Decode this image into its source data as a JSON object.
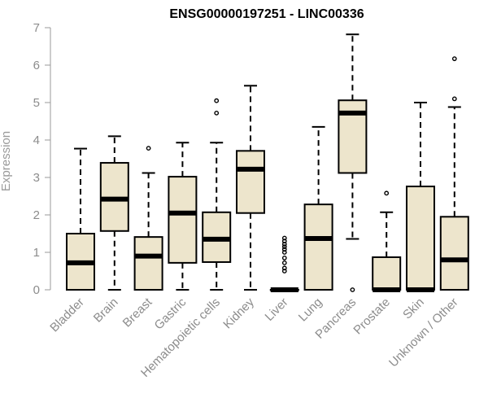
{
  "chart_data": {
    "type": "boxplot",
    "title": "ENSG00000197251 - LINC00336",
    "ylabel": "Expression",
    "xlabel": "",
    "ylim": [
      0,
      7
    ],
    "yticks": [
      0,
      1,
      2,
      3,
      4,
      5,
      6,
      7
    ],
    "box_fill": "#ede5cc",
    "stroke_color": "#000000",
    "categories": [
      "Bladder",
      "Brain",
      "Breast",
      "Gastric",
      "Hematopoietic cells",
      "Kidney",
      "Liver",
      "Lung",
      "Pancreas",
      "Prostate",
      "Skin",
      "Unknown / Other"
    ],
    "boxes": [
      {
        "min": 0,
        "q1": 0,
        "median": 0.72,
        "q3": 1.5,
        "max": 3.77,
        "outliers": []
      },
      {
        "min": 0,
        "q1": 1.57,
        "median": 2.42,
        "q3": 3.39,
        "max": 4.1,
        "outliers": []
      },
      {
        "min": 0,
        "q1": 0,
        "median": 0.9,
        "q3": 1.41,
        "max": 3.12,
        "outliers": [
          3.78
        ]
      },
      {
        "min": 0,
        "q1": 0.72,
        "median": 2.05,
        "q3": 3.02,
        "max": 3.93,
        "outliers": []
      },
      {
        "min": 0,
        "q1": 0.74,
        "median": 1.35,
        "q3": 2.07,
        "max": 3.93,
        "outliers": [
          4.72,
          5.05
        ]
      },
      {
        "min": 0,
        "q1": 2.05,
        "median": 3.22,
        "q3": 3.71,
        "max": 5.45,
        "outliers": []
      },
      {
        "min": 0,
        "q1": 0,
        "median": 0,
        "q3": 0,
        "max": 0,
        "outliers": [
          0.5,
          0.58,
          0.72,
          0.85,
          1.0,
          1.08,
          1.15,
          1.22,
          1.3,
          1.38
        ]
      },
      {
        "min": 0,
        "q1": 0,
        "median": 1.37,
        "q3": 2.28,
        "max": 4.35,
        "outliers": []
      },
      {
        "min": 1.36,
        "q1": 3.12,
        "median": 4.72,
        "q3": 5.06,
        "max": 6.82,
        "outliers": [
          0
        ]
      },
      {
        "min": 0,
        "q1": 0,
        "median": 0,
        "q3": 0.87,
        "max": 2.07,
        "outliers": [
          2.58
        ]
      },
      {
        "min": 0,
        "q1": 0,
        "median": 0,
        "q3": 2.76,
        "max": 5.0,
        "outliers": []
      },
      {
        "min": 0,
        "q1": 0,
        "median": 0.8,
        "q3": 1.95,
        "max": 4.88,
        "outliers": [
          5.1,
          6.17
        ]
      }
    ]
  }
}
